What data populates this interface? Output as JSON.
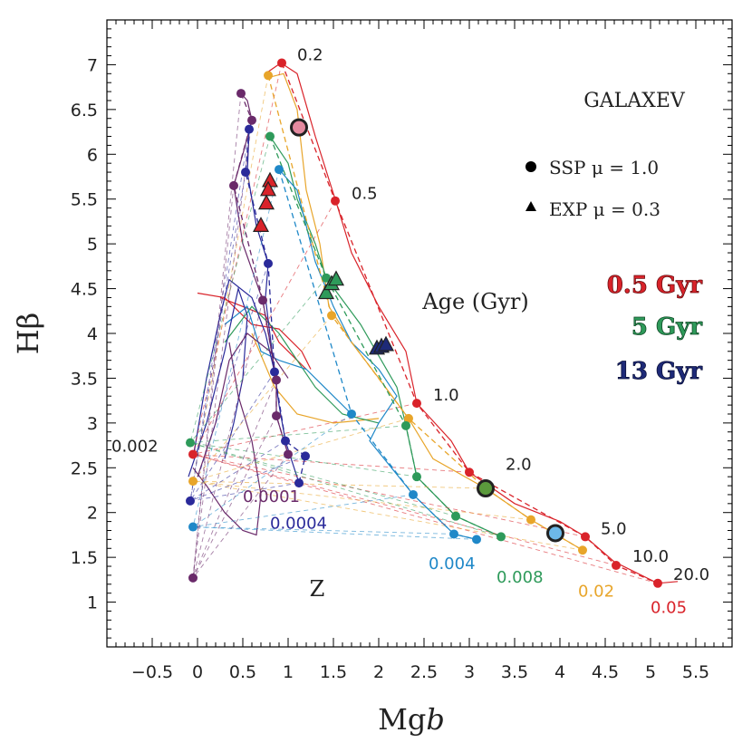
{
  "chart_data": {
    "type": "line",
    "title": "GALAXEV",
    "xlabel": "Mgb",
    "ylabel": "Hβ",
    "xlim": [
      -1,
      5.9
    ],
    "ylim": [
      0.5,
      7.5
    ],
    "x_ticks": [
      "-0.5",
      "0",
      "0.5",
      "1",
      "1.5",
      "2",
      "2.5",
      "3",
      "3.5",
      "4",
      "4.5",
      "5",
      "5.5"
    ],
    "y_ticks": [
      "1",
      "1.5",
      "2",
      "2.5",
      "3",
      "3.5",
      "4",
      "4.5",
      "5",
      "5.5",
      "6",
      "6.5",
      "7"
    ],
    "legend": [
      {
        "marker": "circle",
        "label": "SSP μ = 1.0"
      },
      {
        "marker": "triangle",
        "label": "EXP μ = 0.3"
      }
    ],
    "age_legend": [
      {
        "label": "0.5 Gyr",
        "color": "#d9232a"
      },
      {
        "label": "5 Gyr",
        "color": "#2e9a5a"
      },
      {
        "label": "13 Gyr",
        "color": "#1e2a78"
      }
    ],
    "annotations": {
      "age_title": "Age (Gyr)",
      "z_title": "Z",
      "ages": [
        {
          "label": "0.2",
          "x": 1.1,
          "y": 7.05
        },
        {
          "label": "0.5",
          "x": 1.7,
          "y": 5.5
        },
        {
          "label": "1.0",
          "x": 2.6,
          "y": 3.25
        },
        {
          "label": "2.0",
          "x": 3.4,
          "y": 2.48
        },
        {
          "label": "5.0",
          "x": 4.45,
          "y": 1.76
        },
        {
          "label": "10.0",
          "x": 4.8,
          "y": 1.45
        },
        {
          "label": "20.0",
          "x": 5.25,
          "y": 1.25
        }
      ],
      "metallicities": [
        {
          "label": "0.002",
          "x": -0.95,
          "y": 2.68,
          "color": "#222222"
        },
        {
          "label": "0.0001",
          "x": 0.5,
          "y": 2.12,
          "color": "#6a2a6a"
        },
        {
          "label": "0.0004",
          "x": 0.8,
          "y": 1.82,
          "color": "#2a2a9a"
        },
        {
          "label": "0.004",
          "x": 2.55,
          "y": 1.37,
          "color": "#1f88c8"
        },
        {
          "label": "0.008",
          "x": 3.3,
          "y": 1.22,
          "color": "#2e9a5a"
        },
        {
          "label": "0.02",
          "x": 4.2,
          "y": 1.06,
          "color": "#e8a52a"
        },
        {
          "label": "0.05",
          "x": 5.0,
          "y": 0.88,
          "color": "#d9232a"
        }
      ]
    },
    "series": [
      {
        "name": "Z=0.05",
        "color": "#d9232a",
        "points": [
          [
            0.93,
            7.02
          ],
          [
            1.52,
            5.48
          ],
          [
            2.42,
            3.22
          ],
          [
            3.0,
            2.45
          ],
          [
            4.28,
            1.73
          ],
          [
            4.62,
            1.41
          ],
          [
            5.08,
            1.21
          ],
          [
            -0.05,
            2.65
          ]
        ]
      },
      {
        "name": "Z=0.02",
        "color": "#e8a52a",
        "points": [
          [
            0.78,
            6.88
          ],
          [
            1.48,
            4.2
          ],
          [
            2.33,
            3.05
          ],
          [
            3.18,
            2.27
          ],
          [
            3.68,
            1.92
          ],
          [
            4.25,
            1.58
          ],
          [
            -0.05,
            2.35
          ]
        ]
      },
      {
        "name": "Z=0.008",
        "color": "#2e9a5a",
        "points": [
          [
            0.8,
            6.2
          ],
          [
            1.42,
            4.62
          ],
          [
            2.3,
            2.97
          ],
          [
            2.42,
            2.4
          ],
          [
            2.85,
            1.96
          ],
          [
            3.35,
            1.73
          ],
          [
            -0.08,
            2.78
          ]
        ]
      },
      {
        "name": "Z=0.004",
        "color": "#1f88c8",
        "points": [
          [
            0.9,
            5.83
          ],
          [
            1.7,
            3.1
          ],
          [
            2.38,
            2.2
          ],
          [
            2.83,
            1.76
          ],
          [
            3.08,
            1.7
          ],
          [
            -0.05,
            1.84
          ]
        ]
      },
      {
        "name": "Z=0.0004",
        "color": "#2a2a9a",
        "points": [
          [
            0.57,
            6.28
          ],
          [
            0.53,
            5.8
          ],
          [
            0.78,
            4.78
          ],
          [
            0.85,
            3.57
          ],
          [
            0.97,
            2.8
          ],
          [
            1.19,
            2.63
          ],
          [
            1.12,
            2.33
          ],
          [
            -0.08,
            2.13
          ]
        ]
      },
      {
        "name": "Z=0.0001",
        "color": "#6a2a6a",
        "points": [
          [
            0.48,
            6.68
          ],
          [
            0.6,
            6.38
          ],
          [
            0.4,
            5.65
          ],
          [
            0.72,
            4.37
          ],
          [
            0.87,
            3.48
          ],
          [
            0.87,
            3.08
          ],
          [
            1.0,
            2.65
          ],
          [
            -0.05,
            1.27
          ]
        ]
      }
    ],
    "highlighted_ssp": [
      {
        "x": 1.12,
        "y": 6.3,
        "color": "#e48aa0"
      },
      {
        "x": 3.18,
        "y": 2.27,
        "color": "#5b9a3c"
      },
      {
        "x": 3.95,
        "y": 1.77,
        "color": "#6db8e8"
      }
    ],
    "exp_triangles": [
      {
        "x": 0.8,
        "y": 5.7,
        "color": "#d9232a"
      },
      {
        "x": 0.78,
        "y": 5.6,
        "color": "#d9232a"
      },
      {
        "x": 0.76,
        "y": 5.45,
        "color": "#d9232a"
      },
      {
        "x": 0.7,
        "y": 5.2,
        "color": "#d9232a"
      },
      {
        "x": 1.42,
        "y": 4.45,
        "color": "#2e9a5a"
      },
      {
        "x": 1.48,
        "y": 4.55,
        "color": "#2e9a5a"
      },
      {
        "x": 1.53,
        "y": 4.6,
        "color": "#2e9a5a"
      },
      {
        "x": 1.98,
        "y": 3.83,
        "color": "#1e2a78"
      },
      {
        "x": 2.03,
        "y": 3.85,
        "color": "#1e2a78"
      },
      {
        "x": 2.08,
        "y": 3.87,
        "color": "#1e2a78"
      }
    ]
  }
}
